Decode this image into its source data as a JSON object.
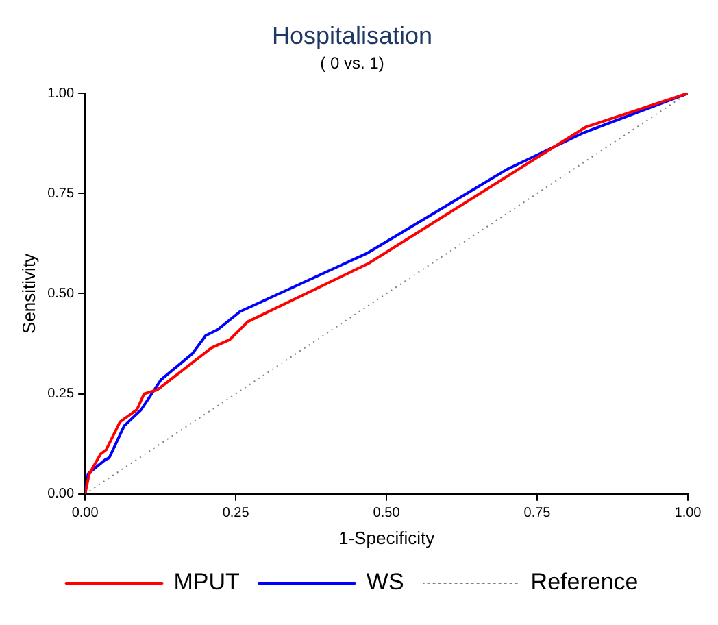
{
  "chart_data": {
    "type": "line",
    "title": "Hospitalisation",
    "subtitle": "( 0 vs. 1)",
    "xlabel": "1-Specificity",
    "ylabel": "Sensitivity",
    "xlim": [
      0,
      1
    ],
    "ylim": [
      0,
      1
    ],
    "xticks": [
      {
        "value": 0,
        "label": "0.00"
      },
      {
        "value": 0.25,
        "label": "0.25"
      },
      {
        "value": 0.5,
        "label": "0.50"
      },
      {
        "value": 0.75,
        "label": "0.75"
      },
      {
        "value": 1,
        "label": "1.00"
      }
    ],
    "yticks": [
      {
        "value": 0,
        "label": "0.00"
      },
      {
        "value": 0.25,
        "label": "0.25"
      },
      {
        "value": 0.5,
        "label": "0.50"
      },
      {
        "value": 0.75,
        "label": "0.75"
      },
      {
        "value": 1,
        "label": "1.00"
      }
    ],
    "grid": false,
    "legend": "bottom",
    "marker": "none",
    "series": [
      {
        "name": "MPUT",
        "color": "#ff0000",
        "line_style": "solid",
        "x": [
          0,
          0.007,
          0.026,
          0.035,
          0.058,
          0.086,
          0.098,
          0.12,
          0.21,
          0.24,
          0.27,
          0.47,
          0.83,
          1
        ],
        "values": [
          0,
          0.05,
          0.1,
          0.11,
          0.18,
          0.21,
          0.25,
          0.26,
          0.365,
          0.385,
          0.43,
          0.575,
          0.915,
          1
        ]
      },
      {
        "name": "WS",
        "color": "#0000ff",
        "line_style": "solid",
        "x": [
          0,
          0.005,
          0.033,
          0.04,
          0.065,
          0.093,
          0.126,
          0.178,
          0.2,
          0.22,
          0.257,
          0.467,
          0.7,
          0.825,
          1
        ],
        "values": [
          0,
          0.05,
          0.085,
          0.09,
          0.17,
          0.21,
          0.285,
          0.35,
          0.395,
          0.41,
          0.455,
          0.6,
          0.81,
          0.9,
          1
        ]
      },
      {
        "name": "Reference",
        "color": "#808080",
        "line_style": "dotted",
        "x": [
          0,
          1
        ],
        "values": [
          0,
          1
        ]
      }
    ]
  }
}
